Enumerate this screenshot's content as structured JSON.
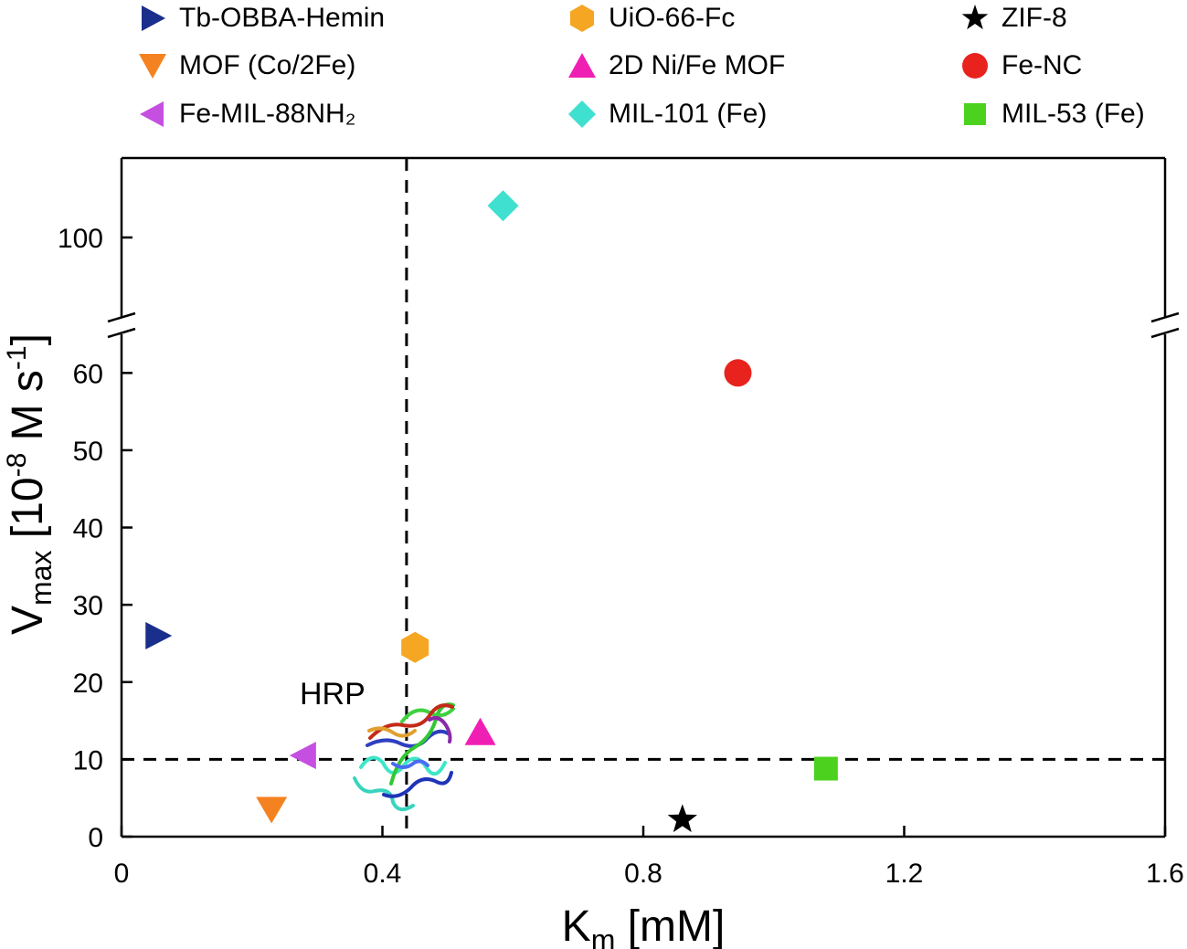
{
  "chart_data": {
    "type": "scatter",
    "title": "",
    "xlabel": {
      "main": "K",
      "sub": "m",
      "rest": " [mM]"
    },
    "ylabel": {
      "main": "V",
      "sub": "max",
      "rest": " [10",
      "sup": "-8",
      "rest2": " M s",
      "sup2": "-1",
      "close": "]"
    },
    "xlim": [
      0,
      1.6
    ],
    "xticks": [
      0,
      0.4,
      0.8,
      1.2,
      1.6
    ],
    "xtick_labels": [
      "0",
      "0.4",
      "0.8",
      "1.2",
      "1.6"
    ],
    "ylim_lower": [
      0,
      65
    ],
    "ylim_upper": [
      95,
      105
    ],
    "yticks_lower": [
      0,
      10,
      20,
      30,
      40,
      50,
      60
    ],
    "yticks_upper": [
      100
    ],
    "axis_break": true,
    "grid": false,
    "legend_position": "top",
    "reference_lines": [
      {
        "orientation": "vertical",
        "x": 0.437,
        "style": "dashed"
      },
      {
        "orientation": "horizontal",
        "y": 10,
        "style": "dashed"
      }
    ],
    "annotation": {
      "text": "HRP",
      "x": 0.33,
      "y": 18
    },
    "series": [
      {
        "name": "Tb-OBBA-Hemin",
        "marker": "triangle-right",
        "color": "#1a2e8c",
        "x": 0.055,
        "y": 26
      },
      {
        "name": "MOF (Co/2Fe)",
        "marker": "triangle-down",
        "color": "#f58220",
        "x": 0.23,
        "y": 3.6
      },
      {
        "name": "Fe-MIL-88NH₂",
        "marker": "triangle-left",
        "color": "#c44fe0",
        "x": 0.28,
        "y": 10.5
      },
      {
        "name": "UiO-66-Fc",
        "marker": "hexagon",
        "color": "#f5a623",
        "x": 0.45,
        "y": 24.5
      },
      {
        "name": "2D Ni/Fe MOF",
        "marker": "triangle-up",
        "color": "#f01fb4",
        "x": 0.55,
        "y": 13.5
      },
      {
        "name": "MIL-101 (Fe)",
        "marker": "diamond",
        "color": "#40e0d0",
        "x": 0.585,
        "y": 102
      },
      {
        "name": "ZIF-8",
        "marker": "star",
        "color": "#000000",
        "x": 0.86,
        "y": 2.2
      },
      {
        "name": "Fe-NC",
        "marker": "circle",
        "color": "#e8231d",
        "x": 0.945,
        "y": 60
      },
      {
        "name": "MIL-53 (Fe)",
        "marker": "square",
        "color": "#4cd21e",
        "x": 1.08,
        "y": 8.8
      }
    ]
  }
}
